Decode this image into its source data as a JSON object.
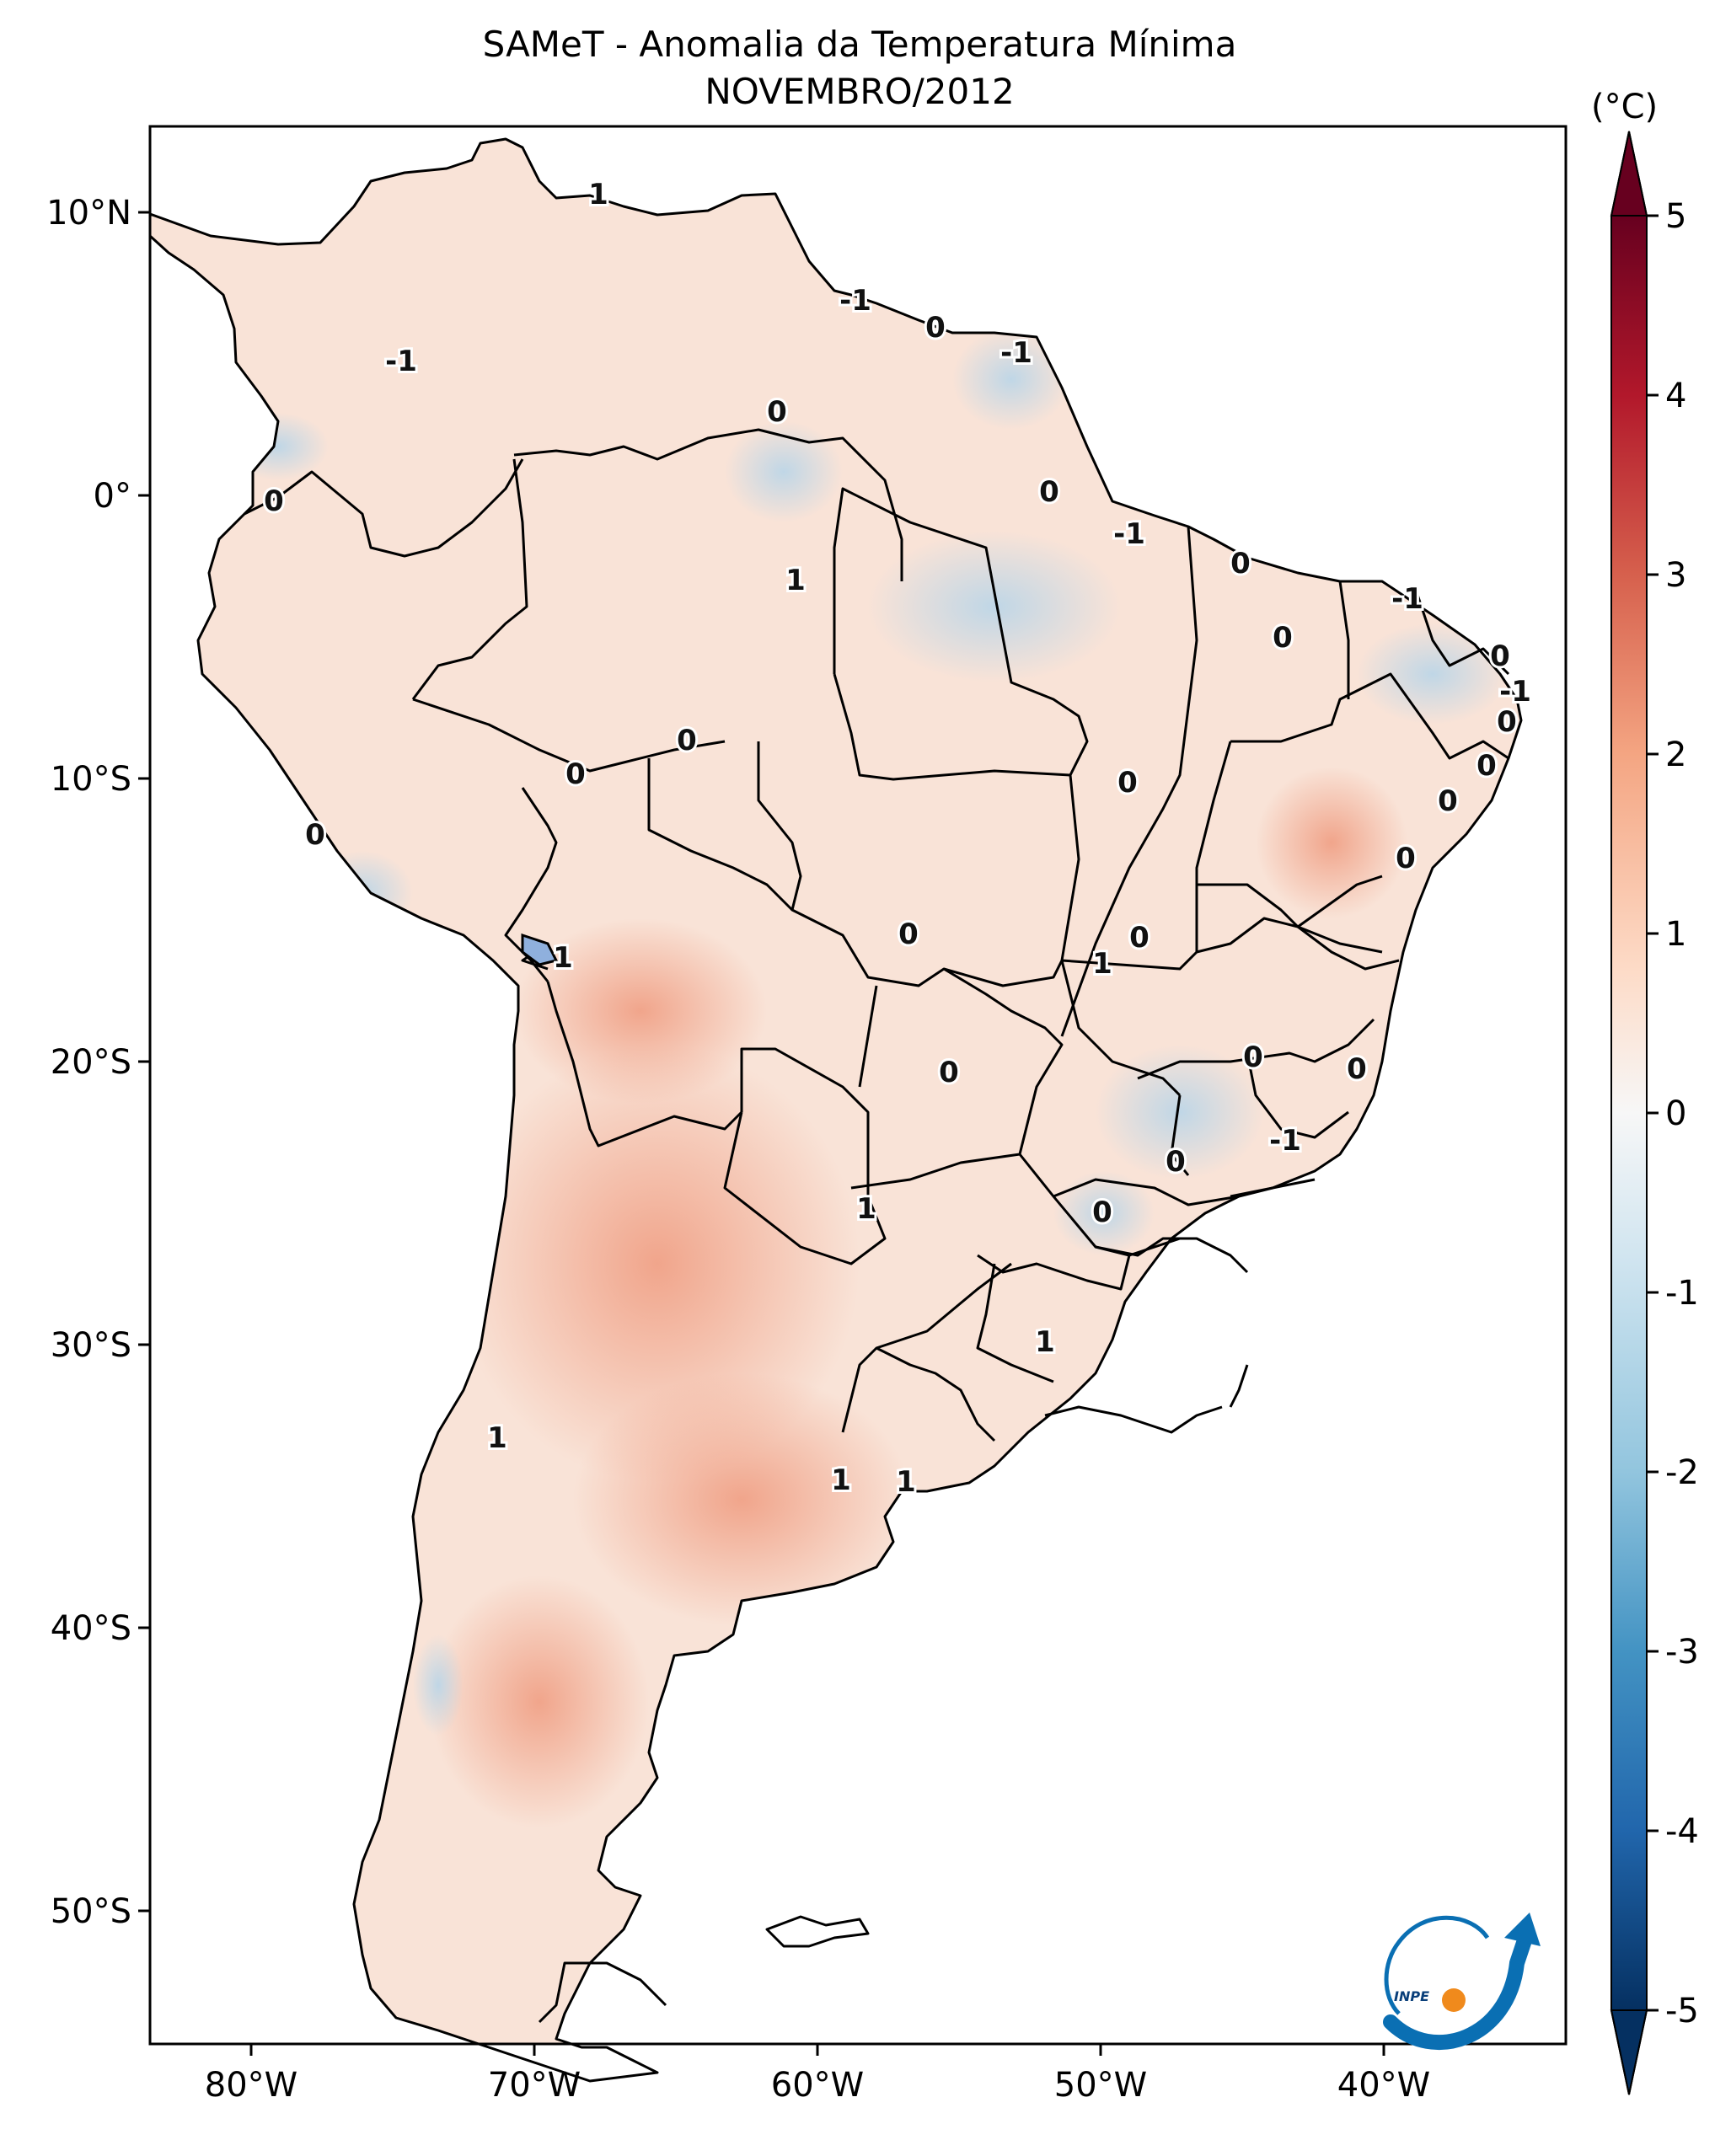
{
  "title": "SAMeT - Anomalia da Temperatura Mínima",
  "subtitle": "NOVEMBRO/2012",
  "colorbar": {
    "unit_label": "(°C)",
    "ticks": [
      "5",
      "4",
      "3",
      "2",
      "1",
      "0",
      "-1",
      "-2",
      "-3",
      "-4",
      "-5"
    ],
    "range": [
      -5,
      5
    ],
    "colors": [
      "#053061",
      "#2166ac",
      "#4393c3",
      "#92c5de",
      "#d1e5f0",
      "#f7f7f7",
      "#fddbc7",
      "#f4a582",
      "#d6604d",
      "#b2182b",
      "#67001f"
    ]
  },
  "axes": {
    "lon_labels": [
      "80°W",
      "70°W",
      "60°W",
      "50°W",
      "40°W"
    ],
    "lat_labels": [
      "10°N",
      "0°",
      "10°S",
      "20°S",
      "30°S",
      "40°S",
      "50°S"
    ]
  },
  "contour_labels": [
    "1",
    "-1",
    "-1",
    "0",
    "-1",
    "0",
    "0",
    "0",
    "-1",
    "0",
    "-1",
    "1",
    "0",
    "0",
    "-1",
    "0",
    "0",
    "0",
    "0",
    "0",
    "0",
    "0",
    "0",
    "0",
    "0",
    "1",
    "1",
    "0",
    "0",
    "0",
    "-1",
    "1",
    "0",
    "0",
    "1",
    "1",
    "1",
    "1"
  ],
  "logo": {
    "text": "INPE",
    "icon": "inpe-logo-icon"
  }
}
